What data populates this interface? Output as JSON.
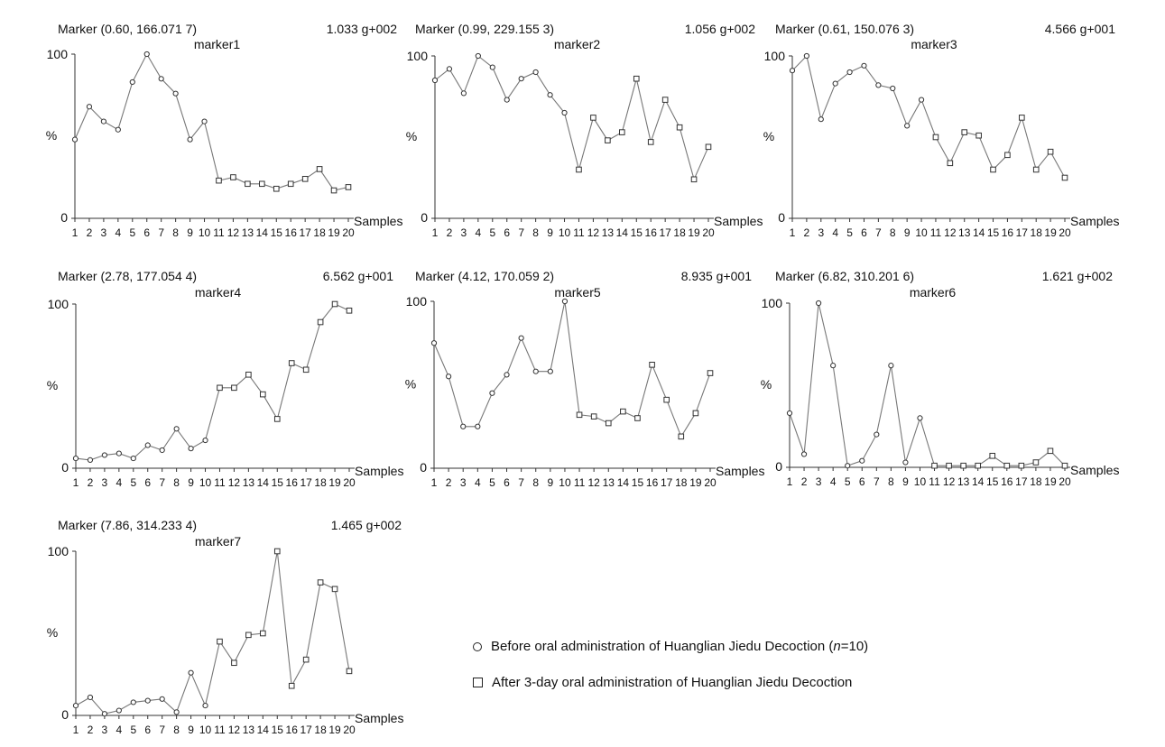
{
  "figure": {
    "legend": {
      "before_prefix": "Before oral administration of Huanglian Jiedu Decoction (",
      "before_n": "n",
      "before_suffix": "=10)",
      "after": "After 3-day oral administration of Huanglian Jiedu Decoction"
    }
  },
  "chart_data": [
    {
      "type": "line",
      "header": "Marker (0.60, 166.071 7)",
      "intensity": "1.033 g+002",
      "title": "marker1",
      "xlabel": "Samples",
      "ylabel": "%",
      "ytick_top": "100",
      "ytick_bottom": "0",
      "ylim": [
        0,
        100
      ],
      "x": [
        1,
        2,
        3,
        4,
        5,
        6,
        7,
        8,
        9,
        10,
        11,
        12,
        13,
        14,
        15,
        16,
        17,
        18,
        19,
        20
      ],
      "groups": [
        "before",
        "before",
        "before",
        "before",
        "before",
        "before",
        "before",
        "before",
        "before",
        "before",
        "after",
        "after",
        "after",
        "after",
        "after",
        "after",
        "after",
        "after",
        "after",
        "after"
      ],
      "values": [
        48,
        68,
        59,
        54,
        83,
        100,
        85,
        76,
        48,
        59,
        23,
        25,
        21,
        21,
        18,
        21,
        24,
        30,
        17,
        19
      ]
    },
    {
      "type": "line",
      "header": "Marker (0.99, 229.155 3)",
      "intensity": "1.056 g+002",
      "title": "marker2",
      "xlabel": "Samples",
      "ylabel": "%",
      "ytick_top": "100",
      "ytick_bottom": "0",
      "ylim": [
        0,
        100
      ],
      "x": [
        1,
        2,
        3,
        4,
        5,
        6,
        7,
        8,
        9,
        10,
        11,
        12,
        13,
        14,
        15,
        16,
        17,
        18,
        19,
        20
      ],
      "groups": [
        "before",
        "before",
        "before",
        "before",
        "before",
        "before",
        "before",
        "before",
        "before",
        "before",
        "after",
        "after",
        "after",
        "after",
        "after",
        "after",
        "after",
        "after",
        "after",
        "after"
      ],
      "values": [
        85,
        92,
        77,
        100,
        93,
        73,
        86,
        90,
        76,
        65,
        30,
        62,
        48,
        53,
        86,
        47,
        73,
        56,
        24,
        44
      ]
    },
    {
      "type": "line",
      "header": "Marker (0.61, 150.076 3)",
      "intensity": "4.566 g+001",
      "title": "marker3",
      "xlabel": "Samples",
      "ylabel": "%",
      "ytick_top": "100",
      "ytick_bottom": "0",
      "ylim": [
        0,
        100
      ],
      "x": [
        1,
        2,
        3,
        4,
        5,
        6,
        7,
        8,
        9,
        10,
        11,
        12,
        13,
        14,
        15,
        16,
        17,
        18,
        19,
        20
      ],
      "groups": [
        "before",
        "before",
        "before",
        "before",
        "before",
        "before",
        "before",
        "before",
        "before",
        "before",
        "after",
        "after",
        "after",
        "after",
        "after",
        "after",
        "after",
        "after",
        "after",
        "after"
      ],
      "values": [
        91,
        100,
        61,
        83,
        90,
        94,
        82,
        80,
        57,
        73,
        50,
        34,
        53,
        51,
        30,
        39,
        62,
        30,
        41,
        25
      ]
    },
    {
      "type": "line",
      "header": "Marker (2.78, 177.054 4)",
      "intensity": "6.562 g+001",
      "title": "marker4",
      "xlabel": "Samples",
      "ylabel": "%",
      "ytick_top": "100",
      "ytick_bottom": "0",
      "ylim": [
        0,
        100
      ],
      "x": [
        1,
        2,
        3,
        4,
        5,
        6,
        7,
        8,
        9,
        10,
        11,
        12,
        13,
        14,
        15,
        16,
        17,
        18,
        19,
        20
      ],
      "groups": [
        "before",
        "before",
        "before",
        "before",
        "before",
        "before",
        "before",
        "before",
        "before",
        "before",
        "after",
        "after",
        "after",
        "after",
        "after",
        "after",
        "after",
        "after",
        "after",
        "after"
      ],
      "values": [
        6,
        5,
        8,
        9,
        6,
        14,
        11,
        24,
        12,
        17,
        49,
        49,
        57,
        45,
        30,
        64,
        60,
        89,
        100,
        96
      ]
    },
    {
      "type": "line",
      "header": "Marker (4.12, 170.059 2)",
      "intensity": "8.935 g+001",
      "title": "marker5",
      "xlabel": "Samples",
      "ylabel": "%",
      "ytick_top": "100",
      "ytick_bottom": "0",
      "ylim": [
        0,
        100
      ],
      "x": [
        1,
        2,
        3,
        4,
        5,
        6,
        7,
        8,
        9,
        10,
        11,
        12,
        13,
        14,
        15,
        16,
        17,
        18,
        19,
        20
      ],
      "groups": [
        "before",
        "before",
        "before",
        "before",
        "before",
        "before",
        "before",
        "before",
        "before",
        "before",
        "after",
        "after",
        "after",
        "after",
        "after",
        "after",
        "after",
        "after",
        "after",
        "after"
      ],
      "values": [
        75,
        55,
        25,
        25,
        45,
        56,
        78,
        58,
        58,
        100,
        32,
        31,
        27,
        34,
        30,
        62,
        41,
        19,
        33,
        57
      ]
    },
    {
      "type": "line",
      "header": "Marker (6.82, 310.201 6)",
      "intensity": "1.621 g+002",
      "title": "marker6",
      "xlabel": "Samples",
      "ylabel": "%",
      "ytick_top": "100",
      "ytick_bottom": "0",
      "ylim": [
        0,
        100
      ],
      "x": [
        1,
        2,
        3,
        4,
        5,
        6,
        7,
        8,
        9,
        10,
        11,
        12,
        13,
        14,
        15,
        16,
        17,
        18,
        19,
        20
      ],
      "groups": [
        "before",
        "before",
        "before",
        "before",
        "before",
        "before",
        "before",
        "before",
        "before",
        "before",
        "after",
        "after",
        "after",
        "after",
        "after",
        "after",
        "after",
        "after",
        "after",
        "after"
      ],
      "values": [
        33,
        8,
        100,
        62,
        1,
        4,
        20,
        62,
        3,
        30,
        1,
        1,
        1,
        1,
        7,
        1,
        1,
        3,
        10,
        1
      ]
    },
    {
      "type": "line",
      "header": "Marker (7.86, 314.233 4)",
      "intensity": "1.465 g+002",
      "title": "marker7",
      "xlabel": "Samples",
      "ylabel": "%",
      "ytick_top": "100",
      "ytick_bottom": "0",
      "ylim": [
        0,
        100
      ],
      "x": [
        1,
        2,
        3,
        4,
        5,
        6,
        7,
        8,
        9,
        10,
        11,
        12,
        13,
        14,
        15,
        16,
        17,
        18,
        19,
        20
      ],
      "groups": [
        "before",
        "before",
        "before",
        "before",
        "before",
        "before",
        "before",
        "before",
        "before",
        "before",
        "after",
        "after",
        "after",
        "after",
        "after",
        "after",
        "after",
        "after",
        "after",
        "after"
      ],
      "values": [
        6,
        11,
        1,
        3,
        8,
        9,
        10,
        2,
        26,
        6,
        45,
        32,
        49,
        50,
        100,
        18,
        34,
        81,
        77,
        27
      ]
    }
  ]
}
